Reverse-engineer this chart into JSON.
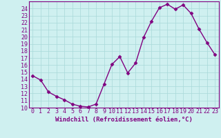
{
  "hours": [
    0,
    1,
    2,
    3,
    4,
    5,
    6,
    7,
    8,
    9,
    10,
    11,
    12,
    13,
    14,
    15,
    16,
    17,
    18,
    19,
    20,
    21,
    22,
    23
  ],
  "values": [
    14.5,
    13.9,
    12.2,
    11.6,
    11.1,
    10.5,
    10.2,
    10.1,
    10.5,
    13.3,
    16.1,
    17.2,
    14.9,
    16.3,
    19.9,
    22.2,
    24.1,
    24.6,
    23.9,
    24.5,
    23.3,
    21.1,
    19.2,
    17.5
  ],
  "line_color": "#800080",
  "marker": "D",
  "marker_size": 2.5,
  "bg_color": "#cff0f0",
  "grid_color": "#a8d8d8",
  "xlabel": "Windchill (Refroidissement éolien,°C)",
  "xlim": [
    -0.5,
    23.5
  ],
  "ylim": [
    10,
    25
  ],
  "yticks": [
    10,
    11,
    12,
    13,
    14,
    15,
    16,
    17,
    18,
    19,
    20,
    21,
    22,
    23,
    24
  ],
  "xticks": [
    0,
    1,
    2,
    3,
    4,
    5,
    6,
    7,
    8,
    9,
    10,
    11,
    12,
    13,
    14,
    15,
    16,
    17,
    18,
    19,
    20,
    21,
    22,
    23
  ],
  "xlabel_fontsize": 6.5,
  "tick_fontsize": 6,
  "line_width": 1.0
}
